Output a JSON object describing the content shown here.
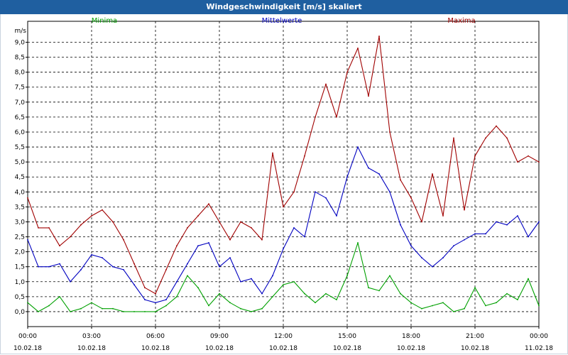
{
  "window": {
    "title": "Windgeschwindigkeit [m/s] skaliert"
  },
  "chart_data": {
    "type": "line",
    "title": "Windgeschwindigkeit [m/s] skaliert",
    "ylabel": "m/s",
    "ylim": [
      -0.5,
      9.7
    ],
    "xlim": [
      0,
      24
    ],
    "yticks": [
      0.0,
      0.5,
      1.0,
      1.5,
      2.0,
      2.5,
      3.0,
      3.5,
      4.0,
      4.5,
      5.0,
      5.5,
      6.0,
      6.5,
      7.0,
      7.5,
      8.0,
      8.5,
      9.0
    ],
    "ytick_labels": [
      "0,0",
      "0,5",
      "1,0",
      "1,5",
      "2,0",
      "2,5",
      "3,0",
      "3,5",
      "4,0",
      "4,5",
      "5,0",
      "5,5",
      "6,0",
      "6,5",
      "7,0",
      "7,5",
      "8,0",
      "8,5",
      "9,0"
    ],
    "xticks": [
      {
        "x": 0,
        "time": "00:00",
        "date": "10.02.18"
      },
      {
        "x": 3,
        "time": "03:00",
        "date": "10.02.18"
      },
      {
        "x": 6,
        "time": "06:00",
        "date": "10.02.18"
      },
      {
        "x": 9,
        "time": "09:00",
        "date": "10.02.18"
      },
      {
        "x": 12,
        "time": "12:00",
        "date": "10.02.18"
      },
      {
        "x": 15,
        "time": "15:00",
        "date": "10.02.18"
      },
      {
        "x": 18,
        "time": "18:00",
        "date": "10.02.18"
      },
      {
        "x": 21,
        "time": "21:00",
        "date": "10.02.18"
      },
      {
        "x": 24,
        "time": "00:00",
        "date": "11.02.18"
      }
    ],
    "grid": true,
    "legend_position": "top",
    "series": [
      {
        "name": "Minima",
        "color": "#00a000",
        "x": [
          0,
          0.5,
          1,
          1.5,
          2,
          2.5,
          3,
          3.5,
          4,
          4.5,
          5,
          5.5,
          6,
          6.5,
          7,
          7.5,
          8,
          8.5,
          9,
          9.5,
          10,
          10.5,
          11,
          11.5,
          12,
          12.5,
          13,
          13.5,
          14,
          14.5,
          15,
          15.5,
          16,
          16.5,
          17,
          17.5,
          18,
          18.5,
          19,
          19.5,
          20,
          20.5,
          21,
          21.5,
          22,
          22.5,
          23,
          23.5,
          24
        ],
        "values": [
          0.3,
          0.0,
          0.2,
          0.5,
          0.0,
          0.1,
          0.3,
          0.1,
          0.1,
          0.0,
          0.0,
          0.0,
          0.0,
          0.2,
          0.5,
          1.2,
          0.8,
          0.2,
          0.6,
          0.3,
          0.1,
          0.0,
          0.1,
          0.5,
          0.9,
          1.0,
          0.6,
          0.3,
          0.6,
          0.4,
          1.2,
          2.3,
          0.8,
          0.7,
          1.2,
          0.6,
          0.3,
          0.1,
          0.2,
          0.3,
          0.0,
          0.1,
          0.8,
          0.2,
          0.3,
          0.6,
          0.4,
          1.1,
          0.2
        ]
      },
      {
        "name": "Mittelwerte",
        "color": "#0000c0",
        "x": [
          0,
          0.5,
          1,
          1.5,
          2,
          2.5,
          3,
          3.5,
          4,
          4.5,
          5,
          5.5,
          6,
          6.5,
          7,
          7.5,
          8,
          8.5,
          9,
          9.5,
          10,
          10.5,
          11,
          11.5,
          12,
          12.5,
          13,
          13.5,
          14,
          14.5,
          15,
          15.5,
          16,
          16.5,
          17,
          17.5,
          18,
          18.5,
          19,
          19.5,
          20,
          20.5,
          21,
          21.5,
          22,
          22.5,
          23,
          23.5,
          24
        ],
        "values": [
          2.4,
          1.5,
          1.5,
          1.6,
          1.0,
          1.4,
          1.9,
          1.8,
          1.5,
          1.4,
          0.9,
          0.4,
          0.3,
          0.4,
          1.0,
          1.6,
          2.2,
          2.3,
          1.5,
          1.8,
          1.0,
          1.1,
          0.6,
          1.2,
          2.1,
          2.8,
          2.5,
          4.0,
          3.8,
          3.2,
          4.5,
          5.5,
          4.8,
          4.6,
          4.0,
          2.9,
          2.2,
          1.8,
          1.5,
          1.8,
          2.2,
          2.4,
          2.6,
          2.6,
          3.0,
          2.9,
          3.2,
          2.5,
          3.0
        ]
      },
      {
        "name": "Maxima",
        "color": "#a00000",
        "x": [
          0,
          0.5,
          1,
          1.5,
          2,
          2.5,
          3,
          3.5,
          4,
          4.5,
          5,
          5.5,
          6,
          6.5,
          7,
          7.5,
          8,
          8.5,
          9,
          9.5,
          10,
          10.5,
          11,
          11.5,
          12,
          12.5,
          13,
          13.5,
          14,
          14.5,
          15,
          15.5,
          16,
          16.5,
          17,
          17.5,
          18,
          18.5,
          19,
          19.5,
          20,
          20.5,
          21,
          21.5,
          22,
          22.5,
          23,
          23.5,
          24
        ],
        "values": [
          3.8,
          2.8,
          2.8,
          2.2,
          2.5,
          2.9,
          3.2,
          3.4,
          3.0,
          2.4,
          1.6,
          0.8,
          0.6,
          1.4,
          2.2,
          2.8,
          3.2,
          3.6,
          3.0,
          2.4,
          3.0,
          2.8,
          2.4,
          5.3,
          3.5,
          4.0,
          5.2,
          6.5,
          7.6,
          6.5,
          8.0,
          8.8,
          7.2,
          9.2,
          6.0,
          4.4,
          3.8,
          3.0,
          4.6,
          3.2,
          5.8,
          3.4,
          5.2,
          5.8,
          6.2,
          5.8,
          5.0,
          5.2,
          5.0
        ]
      }
    ]
  }
}
